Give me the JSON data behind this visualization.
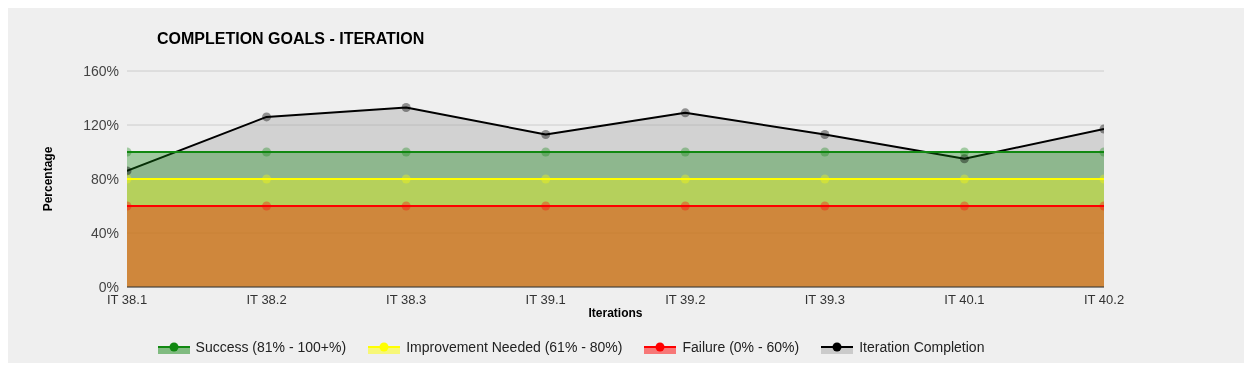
{
  "chart_data": {
    "type": "area",
    "title": "COMPLETION GOALS - ITERATION",
    "xlabel": "Iterations",
    "ylabel": "Percentage",
    "categories": [
      "IT 38.1",
      "IT 38.2",
      "IT 38.3",
      "IT 39.1",
      "IT 39.2",
      "IT 39.3",
      "IT 40.1",
      "IT 40.2"
    ],
    "series": [
      {
        "name": "Success (81% - 100+%)",
        "color": "#118811",
        "values": [
          100,
          100,
          100,
          100,
          100,
          100,
          100,
          100
        ]
      },
      {
        "name": "Improvement Needed (61% - 80%)",
        "color": "#ffff00",
        "values": [
          80,
          80,
          80,
          80,
          80,
          80,
          80,
          80
        ]
      },
      {
        "name": "Failure (0% - 60%)",
        "color": "#ff0000",
        "values": [
          60,
          60,
          60,
          60,
          60,
          60,
          60,
          60
        ]
      },
      {
        "name": "Iteration Completion",
        "color": "#000000",
        "values": [
          86,
          126,
          133,
          113,
          129,
          113,
          95,
          117
        ]
      }
    ],
    "ylim": [
      0,
      160
    ],
    "yticks": [
      {
        "value": 0,
        "label": "0%"
      },
      {
        "value": 40,
        "label": "40%"
      },
      {
        "value": 80,
        "label": "80%"
      },
      {
        "value": 120,
        "label": "120%"
      },
      {
        "value": 160,
        "label": "160%"
      }
    ],
    "grid": "y",
    "legend": "bottom",
    "marker": "circle",
    "line_style": "solid"
  }
}
